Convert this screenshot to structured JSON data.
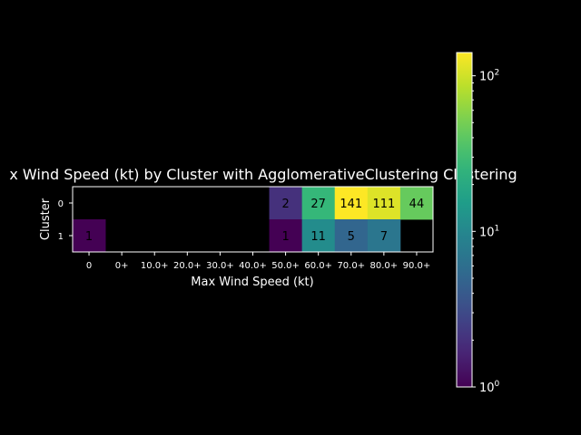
{
  "chart_data": {
    "type": "heatmap",
    "title": "x Wind Speed (kt) by Cluster with AgglomerativeClustering Clustering",
    "xlabel": "Max Wind Speed (kt)",
    "ylabel": "Cluster",
    "x_categories": [
      "0",
      "0+",
      "10.0+",
      "20.0+",
      "30.0+",
      "40.0+",
      "50.0+",
      "60.0+",
      "70.0+",
      "80.0+",
      "90.0+"
    ],
    "y_categories": [
      "0",
      "1"
    ],
    "cells": [
      {
        "row": 0,
        "col": 6,
        "value": 2,
        "label": "2"
      },
      {
        "row": 0,
        "col": 7,
        "value": 27,
        "label": "27"
      },
      {
        "row": 0,
        "col": 8,
        "value": 141,
        "label": "141"
      },
      {
        "row": 0,
        "col": 9,
        "value": 111,
        "label": "111"
      },
      {
        "row": 0,
        "col": 10,
        "value": 44,
        "label": "44"
      },
      {
        "row": 1,
        "col": 0,
        "value": 1,
        "label": "1"
      },
      {
        "row": 1,
        "col": 6,
        "value": 1,
        "label": "1"
      },
      {
        "row": 1,
        "col": 7,
        "value": 11,
        "label": "11"
      },
      {
        "row": 1,
        "col": 8,
        "value": 5,
        "label": "5"
      },
      {
        "row": 1,
        "col": 9,
        "value": 7,
        "label": "7"
      }
    ],
    "colorbar": {
      "scale": "log",
      "colormap": "viridis",
      "range": [
        1,
        141
      ],
      "ticks": [
        {
          "base": "10",
          "exp": "0",
          "value": 1
        },
        {
          "base": "10",
          "exp": "1",
          "value": 10
        },
        {
          "base": "10",
          "exp": "2",
          "value": 100
        }
      ]
    },
    "background": "#000000",
    "text_color": "#ffffff",
    "cell_text_color": "#000000"
  }
}
